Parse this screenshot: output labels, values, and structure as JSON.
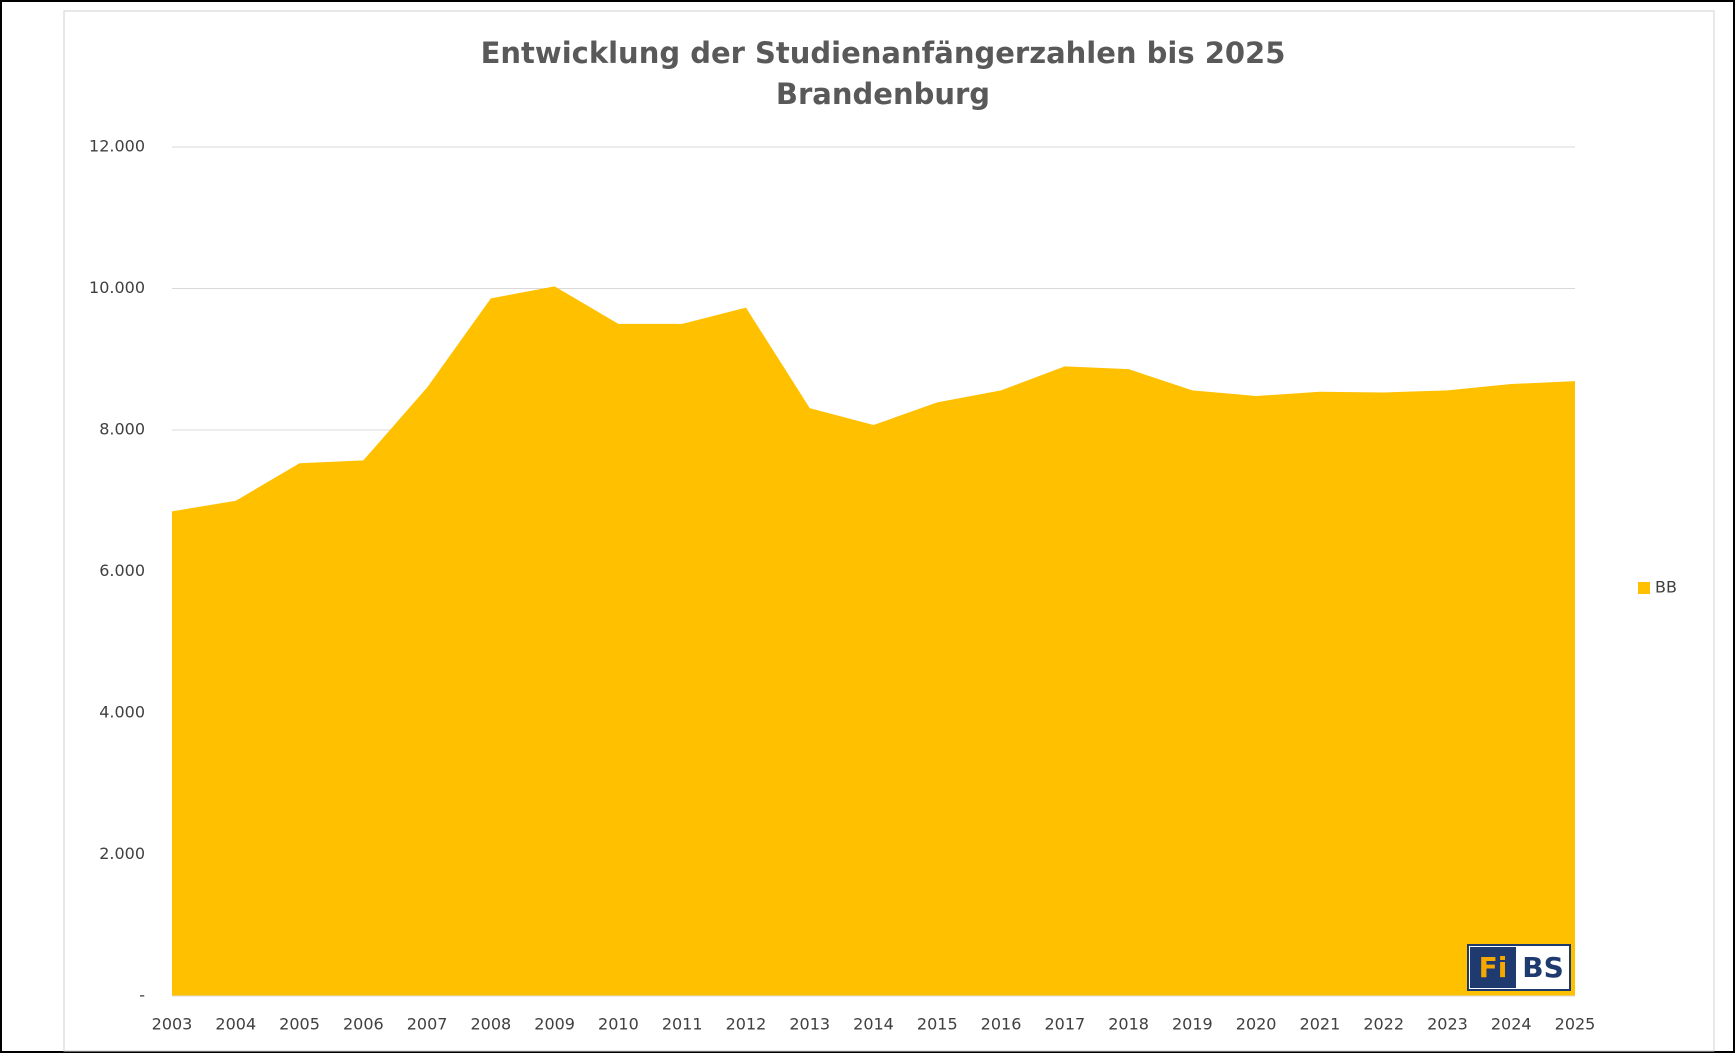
{
  "chart_data": {
    "type": "area",
    "title": "Entwicklung der Studienanfängerzahlen bis 2025",
    "subtitle": "Brandenburg",
    "categories": [
      "2003",
      "2004",
      "2005",
      "2006",
      "2007",
      "2008",
      "2009",
      "2010",
      "2011",
      "2012",
      "2013",
      "2014",
      "2015",
      "2016",
      "2017",
      "2018",
      "2019",
      "2020",
      "2021",
      "2022",
      "2023",
      "2024",
      "2025"
    ],
    "series": [
      {
        "name": "BB",
        "color": "#ffc000",
        "values": [
          6850,
          7000,
          7530,
          7570,
          8600,
          9860,
          10030,
          9500,
          9500,
          9730,
          8310,
          8070,
          8390,
          8560,
          8900,
          8860,
          8560,
          8480,
          8540,
          8530,
          8560,
          8650,
          8690
        ]
      }
    ],
    "ylim": [
      0,
      12000
    ],
    "yticks": [
      {
        "value": 0,
        "label": "-"
      },
      {
        "value": 2000,
        "label": "2.000"
      },
      {
        "value": 4000,
        "label": "4.000"
      },
      {
        "value": 6000,
        "label": "6.000"
      },
      {
        "value": 8000,
        "label": "8.000"
      },
      {
        "value": 10000,
        "label": "10.000"
      },
      {
        "value": 12000,
        "label": "12.000"
      }
    ],
    "grid": true,
    "legend": "right"
  },
  "logo": [
    "Fi",
    "BS"
  ]
}
